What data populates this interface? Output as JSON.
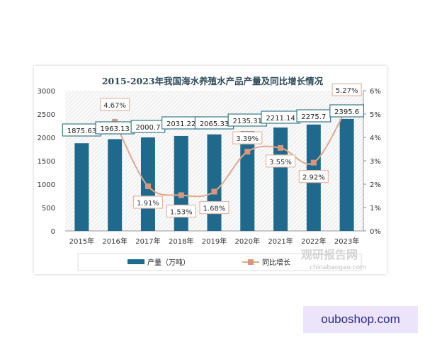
{
  "chart_data": {
    "type": "bar+line",
    "title": "2015-2023年我国海水养殖水产品产量及同比增长情况",
    "categories": [
      "2015年",
      "2016年",
      "2017年",
      "2018年",
      "2019年",
      "2020年",
      "2021年",
      "2022年",
      "2023年"
    ],
    "series": [
      {
        "name": "产量（万吨）",
        "type": "bar",
        "axis": "left",
        "color": "#1f6a8c",
        "values": [
          1875.63,
          1963.13,
          2000.7,
          2031.22,
          2065.33,
          2135.31,
          2211.14,
          2275.7,
          2395.6
        ],
        "labels": [
          "1875.63",
          "1963.13",
          "2000.7",
          "2031.22",
          "2065.33",
          "2135.31",
          "2211.14",
          "2275.7",
          "2395.6"
        ]
      },
      {
        "name": "同比增长",
        "type": "line",
        "axis": "right",
        "color": "#e0a890",
        "values": [
          null,
          4.67,
          1.91,
          1.53,
          1.68,
          3.39,
          3.55,
          2.92,
          5.27
        ],
        "labels": [
          "",
          "4.67%",
          "1.91%",
          "1.53%",
          "1.68%",
          "3.39%",
          "3.55%",
          "2.92%",
          "5.27%"
        ]
      }
    ],
    "left_axis": {
      "range": [
        0,
        3000
      ],
      "ticks": [
        "0",
        "500",
        "1000",
        "1500",
        "2000",
        "2500",
        "3000"
      ]
    },
    "right_axis": {
      "range": [
        0,
        6
      ],
      "unit": "%",
      "ticks": [
        "0%",
        "1%",
        "2%",
        "3%",
        "4%",
        "5%",
        "6%"
      ]
    },
    "legend_placement": "bottom",
    "watermark": {
      "logo_text": "观研报告网",
      "url_text": "chinabaogao.com"
    }
  },
  "corner_watermark": "ouboshop.com"
}
